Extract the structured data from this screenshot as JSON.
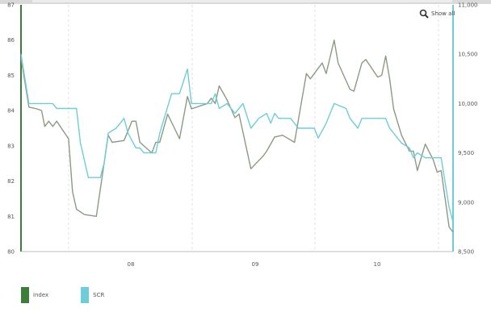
{
  "show_all_label": "Show all",
  "chart_data": {
    "type": "line",
    "x_labels": [
      "08",
      "09",
      "10"
    ],
    "y_left": {
      "ticks": [
        "87",
        "86",
        "85",
        "84",
        "83",
        "82",
        "81",
        "80"
      ],
      "min": 80,
      "max": 87
    },
    "y_right": {
      "ticks": [
        "11,000",
        "10,500",
        "10,000",
        "9,500",
        "9,000",
        "8,500"
      ],
      "min": 8500,
      "max": 11000
    },
    "grid": {
      "vertical_dashed": true
    },
    "legend_position": "bottom-left",
    "series": [
      {
        "name": "index",
        "color": "#8c9a84",
        "swatch_color": "#3f7d3a",
        "axis": "left",
        "points": [
          [
            0,
            85.5
          ],
          [
            1,
            84.1
          ],
          [
            2,
            84.05
          ],
          [
            2.6,
            84.0
          ],
          [
            3,
            83.55
          ],
          [
            3.5,
            83.7
          ],
          [
            4,
            83.55
          ],
          [
            4.5,
            83.7
          ],
          [
            6,
            83.2
          ],
          [
            6.5,
            81.7
          ],
          [
            7,
            81.2
          ],
          [
            8,
            81.05
          ],
          [
            9.5,
            81.0
          ],
          [
            11,
            83.3
          ],
          [
            11.5,
            83.1
          ],
          [
            13,
            83.15
          ],
          [
            14,
            83.7
          ],
          [
            14.5,
            83.7
          ],
          [
            15,
            83.1
          ],
          [
            16.5,
            82.8
          ],
          [
            17,
            83.1
          ],
          [
            17.5,
            83.1
          ],
          [
            18.5,
            83.9
          ],
          [
            20,
            83.2
          ],
          [
            21,
            84.4
          ],
          [
            21.5,
            84.05
          ],
          [
            23.5,
            84.2
          ],
          [
            24,
            84.35
          ],
          [
            24.5,
            84.2
          ],
          [
            25,
            84.7
          ],
          [
            26,
            84.3
          ],
          [
            27,
            83.8
          ],
          [
            27.5,
            83.9
          ],
          [
            29,
            82.35
          ],
          [
            30.5,
            82.7
          ],
          [
            31,
            82.85
          ],
          [
            32,
            83.25
          ],
          [
            33,
            83.3
          ],
          [
            34.5,
            83.1
          ],
          [
            36,
            85.05
          ],
          [
            36.5,
            84.9
          ],
          [
            38,
            85.35
          ],
          [
            38.5,
            85.05
          ],
          [
            39.5,
            86.0
          ],
          [
            40,
            85.35
          ],
          [
            41.5,
            84.6
          ],
          [
            42,
            84.55
          ],
          [
            43,
            85.35
          ],
          [
            43.5,
            85.45
          ],
          [
            45,
            84.95
          ],
          [
            45.5,
            85.0
          ],
          [
            46,
            85.55
          ],
          [
            46.5,
            84.9
          ],
          [
            47,
            84.05
          ],
          [
            48,
            83.3
          ],
          [
            49,
            82.85
          ],
          [
            49.5,
            82.85
          ],
          [
            50,
            82.3
          ],
          [
            51,
            83.05
          ],
          [
            52,
            82.6
          ],
          [
            52.5,
            82.25
          ],
          [
            53,
            82.3
          ],
          [
            54,
            80.7
          ],
          [
            54.5,
            80.55
          ]
        ]
      },
      {
        "name": "SCR",
        "color": "#6ecdd8",
        "swatch_color": "#6ecdd8",
        "axis": "right",
        "points": [
          [
            0,
            10500
          ],
          [
            1,
            10000
          ],
          [
            4,
            10000
          ],
          [
            4.5,
            9950
          ],
          [
            7,
            9950
          ],
          [
            7.5,
            9600
          ],
          [
            8.5,
            9250
          ],
          [
            10,
            9250
          ],
          [
            10.5,
            9400
          ],
          [
            11,
            9700
          ],
          [
            12,
            9750
          ],
          [
            13,
            9850
          ],
          [
            13.5,
            9700
          ],
          [
            14.5,
            9550
          ],
          [
            15,
            9550
          ],
          [
            15.5,
            9500
          ],
          [
            17,
            9500
          ],
          [
            17.5,
            9700
          ],
          [
            19,
            10100
          ],
          [
            20,
            10100
          ],
          [
            21,
            10350
          ],
          [
            21.5,
            10000
          ],
          [
            24,
            10000
          ],
          [
            24.5,
            10100
          ],
          [
            25,
            9950
          ],
          [
            26,
            10000
          ],
          [
            27,
            9900
          ],
          [
            27.5,
            9950
          ],
          [
            28,
            10000
          ],
          [
            29,
            9750
          ],
          [
            30,
            9850
          ],
          [
            31,
            9900
          ],
          [
            31.5,
            9800
          ],
          [
            32,
            9900
          ],
          [
            32.5,
            9850
          ],
          [
            34,
            9850
          ],
          [
            34.5,
            9800
          ],
          [
            35,
            9750
          ],
          [
            36,
            9750
          ],
          [
            37,
            9750
          ],
          [
            37.5,
            9650
          ],
          [
            38.5,
            9800
          ],
          [
            39.5,
            10000
          ],
          [
            41,
            9950
          ],
          [
            41.5,
            9850
          ],
          [
            42.5,
            9750
          ],
          [
            43,
            9850
          ],
          [
            46,
            9850
          ],
          [
            46.5,
            9750
          ],
          [
            47,
            9700
          ],
          [
            48,
            9600
          ],
          [
            49,
            9550
          ],
          [
            49.5,
            9450
          ],
          [
            50,
            9500
          ],
          [
            51,
            9450
          ],
          [
            53,
            9450
          ],
          [
            53.5,
            9200
          ],
          [
            54,
            8950
          ],
          [
            54.5,
            8800
          ]
        ]
      }
    ]
  }
}
